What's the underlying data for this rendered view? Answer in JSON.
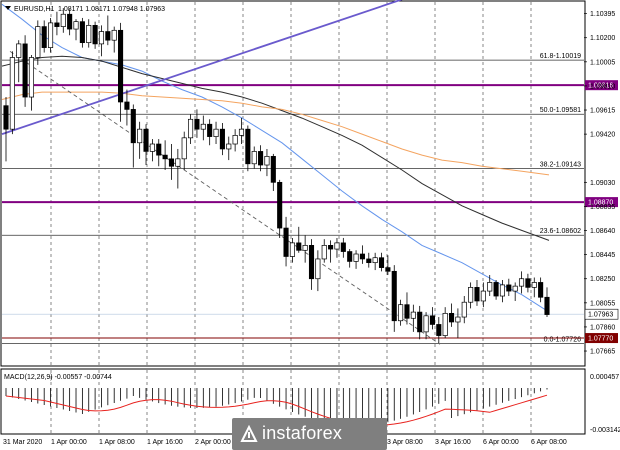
{
  "header": {
    "symbol_label": "EURUSD,H1",
    "ohlc": "1.08171 1.08171 1.07948 1.07963"
  },
  "chart_data": {
    "type": "candlestick",
    "title": "EURUSD,H1",
    "ylim": [
      1.07552,
      1.10489
    ],
    "price_ticks": [
      "1.10395",
      "1.10200",
      "1.10005",
      "1.09810",
      "1.09615",
      "1.09420",
      "1.09030",
      "1.08835",
      "1.08640",
      "1.08445",
      "1.08250",
      "1.08055",
      "1.07860",
      "1.07665"
    ],
    "time_labels": [
      "31 Mar 2020",
      "1 Apr 00:00",
      "1 Apr 08:00",
      "1 Apr 16:00",
      "2 Apr 00:00",
      "2 Apr 08:00",
      "2 Apr 16:00",
      "3 Apr 00:00",
      "3 Apr 08:00",
      "3 Apr 16:00",
      "6 Apr 00:00",
      "6 Apr 08:00"
    ],
    "current_price": "1.07963",
    "fibonacci_levels": [
      {
        "label": "61.8-1.10019",
        "value": 1.10019
      },
      {
        "label": "50.0-1.09581",
        "value": 1.09581
      },
      {
        "label": "38.2-1.09143",
        "value": 1.09143
      },
      {
        "label": "23.6-1.08602",
        "value": 1.08602
      },
      {
        "label": "0.0-1.07726",
        "value": 1.07726
      }
    ],
    "horizontal_levels": [
      {
        "label": "1.09816",
        "value": 1.09816,
        "color": "#800080"
      },
      {
        "label": "1.08870",
        "value": 1.0887,
        "color": "#800080"
      },
      {
        "label": "1.07770",
        "value": 1.0777,
        "color": "#800000"
      }
    ],
    "moving_averages": [
      {
        "color": "#6495ed",
        "points": [
          [
            0,
            1.1047
          ],
          [
            20,
            1.1035
          ],
          [
            40,
            1.1022
          ],
          [
            60,
            1.1012
          ],
          [
            80,
            1.1004
          ],
          [
            100,
            1.1001
          ],
          [
            120,
            1.0998
          ],
          [
            140,
            1.0993
          ],
          [
            160,
            1.0985
          ],
          [
            180,
            1.0978
          ],
          [
            200,
            1.0972
          ],
          [
            220,
            1.0964
          ],
          [
            240,
            1.0955
          ],
          [
            260,
            1.0945
          ],
          [
            280,
            1.0935
          ],
          [
            300,
            1.0922
          ],
          [
            320,
            1.0909
          ],
          [
            340,
            1.0896
          ],
          [
            360,
            1.0884
          ],
          [
            380,
            1.0873
          ],
          [
            400,
            1.0863
          ],
          [
            420,
            1.0852
          ],
          [
            440,
            1.0845
          ],
          [
            460,
            1.0838
          ],
          [
            480,
            1.0829
          ],
          [
            500,
            1.082
          ],
          [
            520,
            1.0812
          ],
          [
            547,
            1.0798
          ]
        ]
      },
      {
        "color": "#2f2f2f",
        "points": [
          [
            0,
            1.0997
          ],
          [
            20,
            1.1001
          ],
          [
            40,
            1.1004
          ],
          [
            60,
            1.1005
          ],
          [
            80,
            1.1004
          ],
          [
            100,
            1.1001
          ],
          [
            120,
            1.0996
          ],
          [
            140,
            1.0991
          ],
          [
            160,
            1.0987
          ],
          [
            180,
            1.0983
          ],
          [
            200,
            1.0979
          ],
          [
            220,
            1.0976
          ],
          [
            240,
            1.0972
          ],
          [
            260,
            1.0967
          ],
          [
            280,
            1.0961
          ],
          [
            300,
            1.0955
          ],
          [
            320,
            1.0948
          ],
          [
            340,
            1.0941
          ],
          [
            360,
            1.0933
          ],
          [
            380,
            1.0923
          ],
          [
            400,
            1.0913
          ],
          [
            420,
            1.0902
          ],
          [
            440,
            1.0893
          ],
          [
            460,
            1.0884
          ],
          [
            480,
            1.0877
          ],
          [
            500,
            1.087
          ],
          [
            520,
            1.0864
          ],
          [
            547,
            1.0856
          ]
        ]
      },
      {
        "color": "#f4a460",
        "points": [
          [
            0,
            1.097
          ],
          [
            20,
            1.0974
          ],
          [
            40,
            1.0976
          ],
          [
            60,
            1.0976
          ],
          [
            80,
            1.0976
          ],
          [
            100,
            1.0976
          ],
          [
            120,
            1.0975
          ],
          [
            140,
            1.0973
          ],
          [
            160,
            1.0972
          ],
          [
            180,
            1.0971
          ],
          [
            200,
            1.097
          ],
          [
            220,
            1.0969
          ],
          [
            240,
            1.0967
          ],
          [
            260,
            1.0964
          ],
          [
            280,
            1.0962
          ],
          [
            300,
            1.0958
          ],
          [
            320,
            1.0953
          ],
          [
            340,
            1.0948
          ],
          [
            360,
            1.0942
          ],
          [
            380,
            1.0936
          ],
          [
            400,
            1.093
          ],
          [
            420,
            1.0925
          ],
          [
            440,
            1.0921
          ],
          [
            460,
            1.0919
          ],
          [
            480,
            1.0916
          ],
          [
            500,
            1.0914
          ],
          [
            520,
            1.0912
          ],
          [
            547,
            1.0909
          ]
        ]
      }
    ],
    "trend_lines": [
      {
        "color": "#6a5acd",
        "style": "solid",
        "from": [
          0,
          1.0942
        ],
        "to": [
          400,
          1.1051
        ]
      },
      {
        "color": "#606060",
        "style": "dashed",
        "from": [
          8,
          1.1009
        ],
        "to": [
          438,
          1.0772
        ]
      }
    ],
    "candles": [
      [
        1.0965,
        1.0972,
        1.092,
        1.0946
      ],
      [
        1.0946,
        1.1009,
        1.0942,
        1.1004
      ],
      [
        1.1004,
        1.1018,
        1.0984,
        1.1015
      ],
      [
        1.1015,
        1.1022,
        1.0964,
        1.0972
      ],
      [
        1.0972,
        1.1006,
        1.0961,
        1.1004
      ],
      [
        1.1004,
        1.1034,
        1.0998,
        1.1029
      ],
      [
        1.1029,
        1.1034,
        1.1008,
        1.1012
      ],
      [
        1.1012,
        1.1036,
        1.1008,
        1.1032
      ],
      [
        1.1032,
        1.1041,
        1.1022,
        1.1029
      ],
      [
        1.1029,
        1.1044,
        1.1024,
        1.1039
      ],
      [
        1.1039,
        1.1043,
        1.1022,
        1.1027
      ],
      [
        1.1027,
        1.1035,
        1.1018,
        1.1033
      ],
      [
        1.1033,
        1.1036,
        1.1012,
        1.1016
      ],
      [
        1.1016,
        1.1035,
        1.1012,
        1.103
      ],
      [
        1.103,
        1.1033,
        1.1011,
        1.1015
      ],
      [
        1.1015,
        1.103,
        1.1005,
        1.1025
      ],
      [
        1.1025,
        1.1038,
        1.1014,
        1.1018
      ],
      [
        1.1018,
        1.1029,
        1.1008,
        1.1026
      ],
      [
        1.1026,
        1.1032,
        1.0952,
        1.0968
      ],
      [
        1.0968,
        1.0978,
        1.0949,
        1.0962
      ],
      [
        1.0962,
        1.0966,
        1.0915,
        1.0935
      ],
      [
        1.0935,
        1.0952,
        1.0922,
        1.0946
      ],
      [
        1.0946,
        1.095,
        1.0917,
        1.0928
      ],
      [
        1.0928,
        1.0938,
        1.092,
        1.0934
      ],
      [
        1.0934,
        1.0938,
        1.0916,
        1.0925
      ],
      [
        1.0925,
        1.0937,
        1.0913,
        1.0922
      ],
      [
        1.0922,
        1.0934,
        1.0905,
        1.0916
      ],
      [
        1.0916,
        1.093,
        1.0898,
        1.0922
      ],
      [
        1.0922,
        1.0944,
        1.0913,
        1.0939
      ],
      [
        1.0939,
        1.0958,
        1.0934,
        1.0954
      ],
      [
        1.0954,
        1.0962,
        1.0939,
        1.0946
      ],
      [
        1.0946,
        1.0957,
        1.0937,
        1.095
      ],
      [
        1.095,
        1.0954,
        1.0933,
        1.094
      ],
      [
        1.094,
        1.0952,
        1.0934,
        1.0946
      ],
      [
        1.0946,
        1.0951,
        1.0925,
        1.093
      ],
      [
        1.093,
        1.094,
        1.0921,
        1.0934
      ],
      [
        1.0934,
        1.0946,
        1.0928,
        1.0941
      ],
      [
        1.0941,
        1.0955,
        1.0934,
        1.0946
      ],
      [
        1.0946,
        1.0949,
        1.0912,
        1.0918
      ],
      [
        1.0918,
        1.0932,
        1.0914,
        1.0928
      ],
      [
        1.0928,
        1.0933,
        1.0912,
        1.0917
      ],
      [
        1.0917,
        1.093,
        1.0908,
        1.0924
      ],
      [
        1.0924,
        1.0926,
        1.0896,
        1.0903
      ],
      [
        1.0903,
        1.0905,
        1.0858,
        1.0866
      ],
      [
        1.0866,
        1.0875,
        1.0835,
        1.0843
      ],
      [
        1.0843,
        1.0858,
        1.0838,
        1.0854
      ],
      [
        1.0854,
        1.0867,
        1.0846,
        1.0848
      ],
      [
        1.0848,
        1.086,
        1.0838,
        1.0852
      ],
      [
        1.0852,
        1.0857,
        1.0816,
        1.0825
      ],
      [
        1.0825,
        1.0848,
        1.0815,
        1.0841
      ],
      [
        1.0841,
        1.0857,
        1.0838,
        1.0852
      ],
      [
        1.0852,
        1.0856,
        1.0838,
        1.0849
      ],
      [
        1.0849,
        1.0858,
        1.0842,
        1.0854
      ],
      [
        1.0854,
        1.0858,
        1.0842,
        1.0847
      ],
      [
        1.0847,
        1.0849,
        1.0834,
        1.0839
      ],
      [
        1.0839,
        1.0848,
        1.0833,
        1.0845
      ],
      [
        1.0845,
        1.0852,
        1.0837,
        1.0841
      ],
      [
        1.0841,
        1.0846,
        1.0834,
        1.0838
      ],
      [
        1.0838,
        1.0846,
        1.0832,
        1.0842
      ],
      [
        1.0842,
        1.0846,
        1.0831,
        1.0834
      ],
      [
        1.0834,
        1.0844,
        1.0828,
        1.0831
      ],
      [
        1.0831,
        1.0836,
        1.0782,
        1.0791
      ],
      [
        1.0791,
        1.0808,
        1.0787,
        1.0804
      ],
      [
        1.0804,
        1.0814,
        1.0788,
        1.0793
      ],
      [
        1.0793,
        1.0804,
        1.0782,
        1.0798
      ],
      [
        1.0798,
        1.0803,
        1.0776,
        1.0782
      ],
      [
        1.0782,
        1.0798,
        1.0776,
        1.0795
      ],
      [
        1.0795,
        1.0802,
        1.0784,
        1.0788
      ],
      [
        1.0788,
        1.0794,
        1.0773,
        1.0779
      ],
      [
        1.0779,
        1.0802,
        1.0777,
        1.0797
      ],
      [
        1.0797,
        1.0805,
        1.0786,
        1.079
      ],
      [
        1.079,
        1.0801,
        1.0777,
        1.0794
      ],
      [
        1.0794,
        1.0811,
        1.0789,
        1.0806
      ],
      [
        1.0806,
        1.0822,
        1.0801,
        1.0818
      ],
      [
        1.0818,
        1.0824,
        1.0803,
        1.0807
      ],
      [
        1.0807,
        1.0822,
        1.0802,
        1.0815
      ],
      [
        1.0815,
        1.0828,
        1.0811,
        1.0822
      ],
      [
        1.0822,
        1.0824,
        1.0808,
        1.0811
      ],
      [
        1.0811,
        1.0824,
        1.0806,
        1.082
      ],
      [
        1.082,
        1.0825,
        1.0811,
        1.0815
      ],
      [
        1.0815,
        1.0822,
        1.0807,
        1.0819
      ],
      [
        1.0819,
        1.0831,
        1.0813,
        1.0825
      ],
      [
        1.0825,
        1.0829,
        1.0814,
        1.0818
      ],
      [
        1.0818,
        1.0826,
        1.081,
        1.0822
      ],
      [
        1.0822,
        1.0826,
        1.0806,
        1.081
      ],
      [
        1.081,
        1.0818,
        1.0794,
        1.0796
      ]
    ],
    "macd": {
      "label": "MACD(12,26,9) -0.00557 -0.00744",
      "ticks": [
        "0.000457",
        "-0.003142"
      ],
      "signal_color": "#e8231f"
    }
  },
  "watermark": {
    "text": "instaforex"
  }
}
